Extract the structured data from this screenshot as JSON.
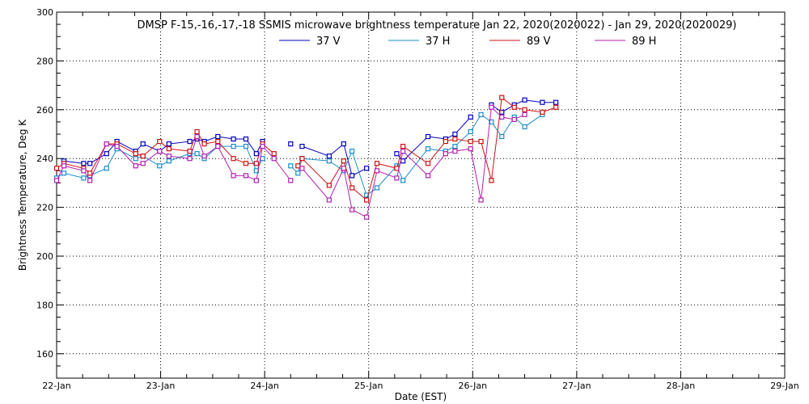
{
  "chart_data": {
    "type": "line",
    "title": "DMSP F-15,-16,-17,-18 SSMIS microwave brightness temperature Jan 22, 2020(2020022) - Jan 29, 2020(2020029)",
    "xlabel": "Date (EST)",
    "ylabel": "Brightness Temperature, Deg K",
    "x_tick_labels": [
      "22-Jan",
      "23-Jan",
      "24-Jan",
      "25-Jan",
      "26-Jan",
      "27-Jan",
      "28-Jan",
      "29-Jan"
    ],
    "y_ticks": [
      160,
      180,
      200,
      220,
      240,
      260,
      280,
      300
    ],
    "xlim": [
      0,
      7
    ],
    "ylim": [
      150,
      300
    ],
    "grid": true,
    "legend_position": "top-center",
    "x": [
      0.0,
      0.07,
      0.26,
      0.32,
      0.48,
      0.58,
      0.76,
      0.83,
      0.99,
      1.08,
      1.28,
      1.35,
      1.42,
      1.55,
      1.7,
      1.82,
      1.92,
      1.98,
      2.09,
      2.25,
      2.32,
      2.36,
      2.62,
      2.76,
      2.84,
      2.98,
      3.08,
      3.27,
      3.33,
      3.57,
      3.74,
      3.83,
      3.98,
      4.08,
      4.18,
      4.28,
      4.4,
      4.5,
      4.67,
      4.8,
      4.88
    ],
    "series": [
      {
        "name": "37 V",
        "color": "#0000c0",
        "values": [
          null,
          239,
          238,
          238,
          242,
          247,
          243,
          246,
          243,
          246,
          247,
          248,
          247,
          249,
          248,
          248,
          242,
          247,
          null,
          246,
          null,
          245,
          241,
          246,
          233,
          236,
          null,
          242,
          239,
          249,
          248,
          250,
          257,
          null,
          262,
          259,
          262,
          264,
          263,
          263,
          null
        ]
      },
      {
        "name": "37 H",
        "color": "#1a8ccc",
        "values": [
          232,
          234,
          232,
          233,
          236,
          244,
          240,
          241,
          237,
          239,
          242,
          242,
          240,
          245,
          245,
          245,
          235,
          240,
          null,
          237,
          234,
          240,
          239,
          235,
          243,
          225,
          228,
          237,
          231,
          244,
          243,
          245,
          251,
          258,
          255,
          249,
          257,
          253,
          258,
          null,
          null
        ]
      },
      {
        "name": "89 V",
        "color": "#d01010",
        "values": [
          236,
          238,
          236,
          234,
          246,
          246,
          242,
          241,
          247,
          244,
          243,
          251,
          246,
          247,
          240,
          238,
          238,
          246,
          242,
          null,
          237,
          240,
          229,
          239,
          228,
          223,
          238,
          236,
          245,
          238,
          247,
          248,
          247,
          247,
          231,
          265,
          261,
          260,
          259,
          261,
          null
        ]
      },
      {
        "name": "89 H",
        "color": "#b020b0",
        "values": [
          231,
          237,
          235,
          231,
          246,
          245,
          237,
          238,
          243,
          241,
          240,
          249,
          241,
          245,
          233,
          233,
          231,
          245,
          240,
          231,
          null,
          236,
          223,
          236,
          219,
          216,
          235,
          232,
          243,
          233,
          242,
          243,
          244,
          223,
          261,
          257,
          256,
          258,
          null,
          null,
          null
        ]
      }
    ]
  }
}
